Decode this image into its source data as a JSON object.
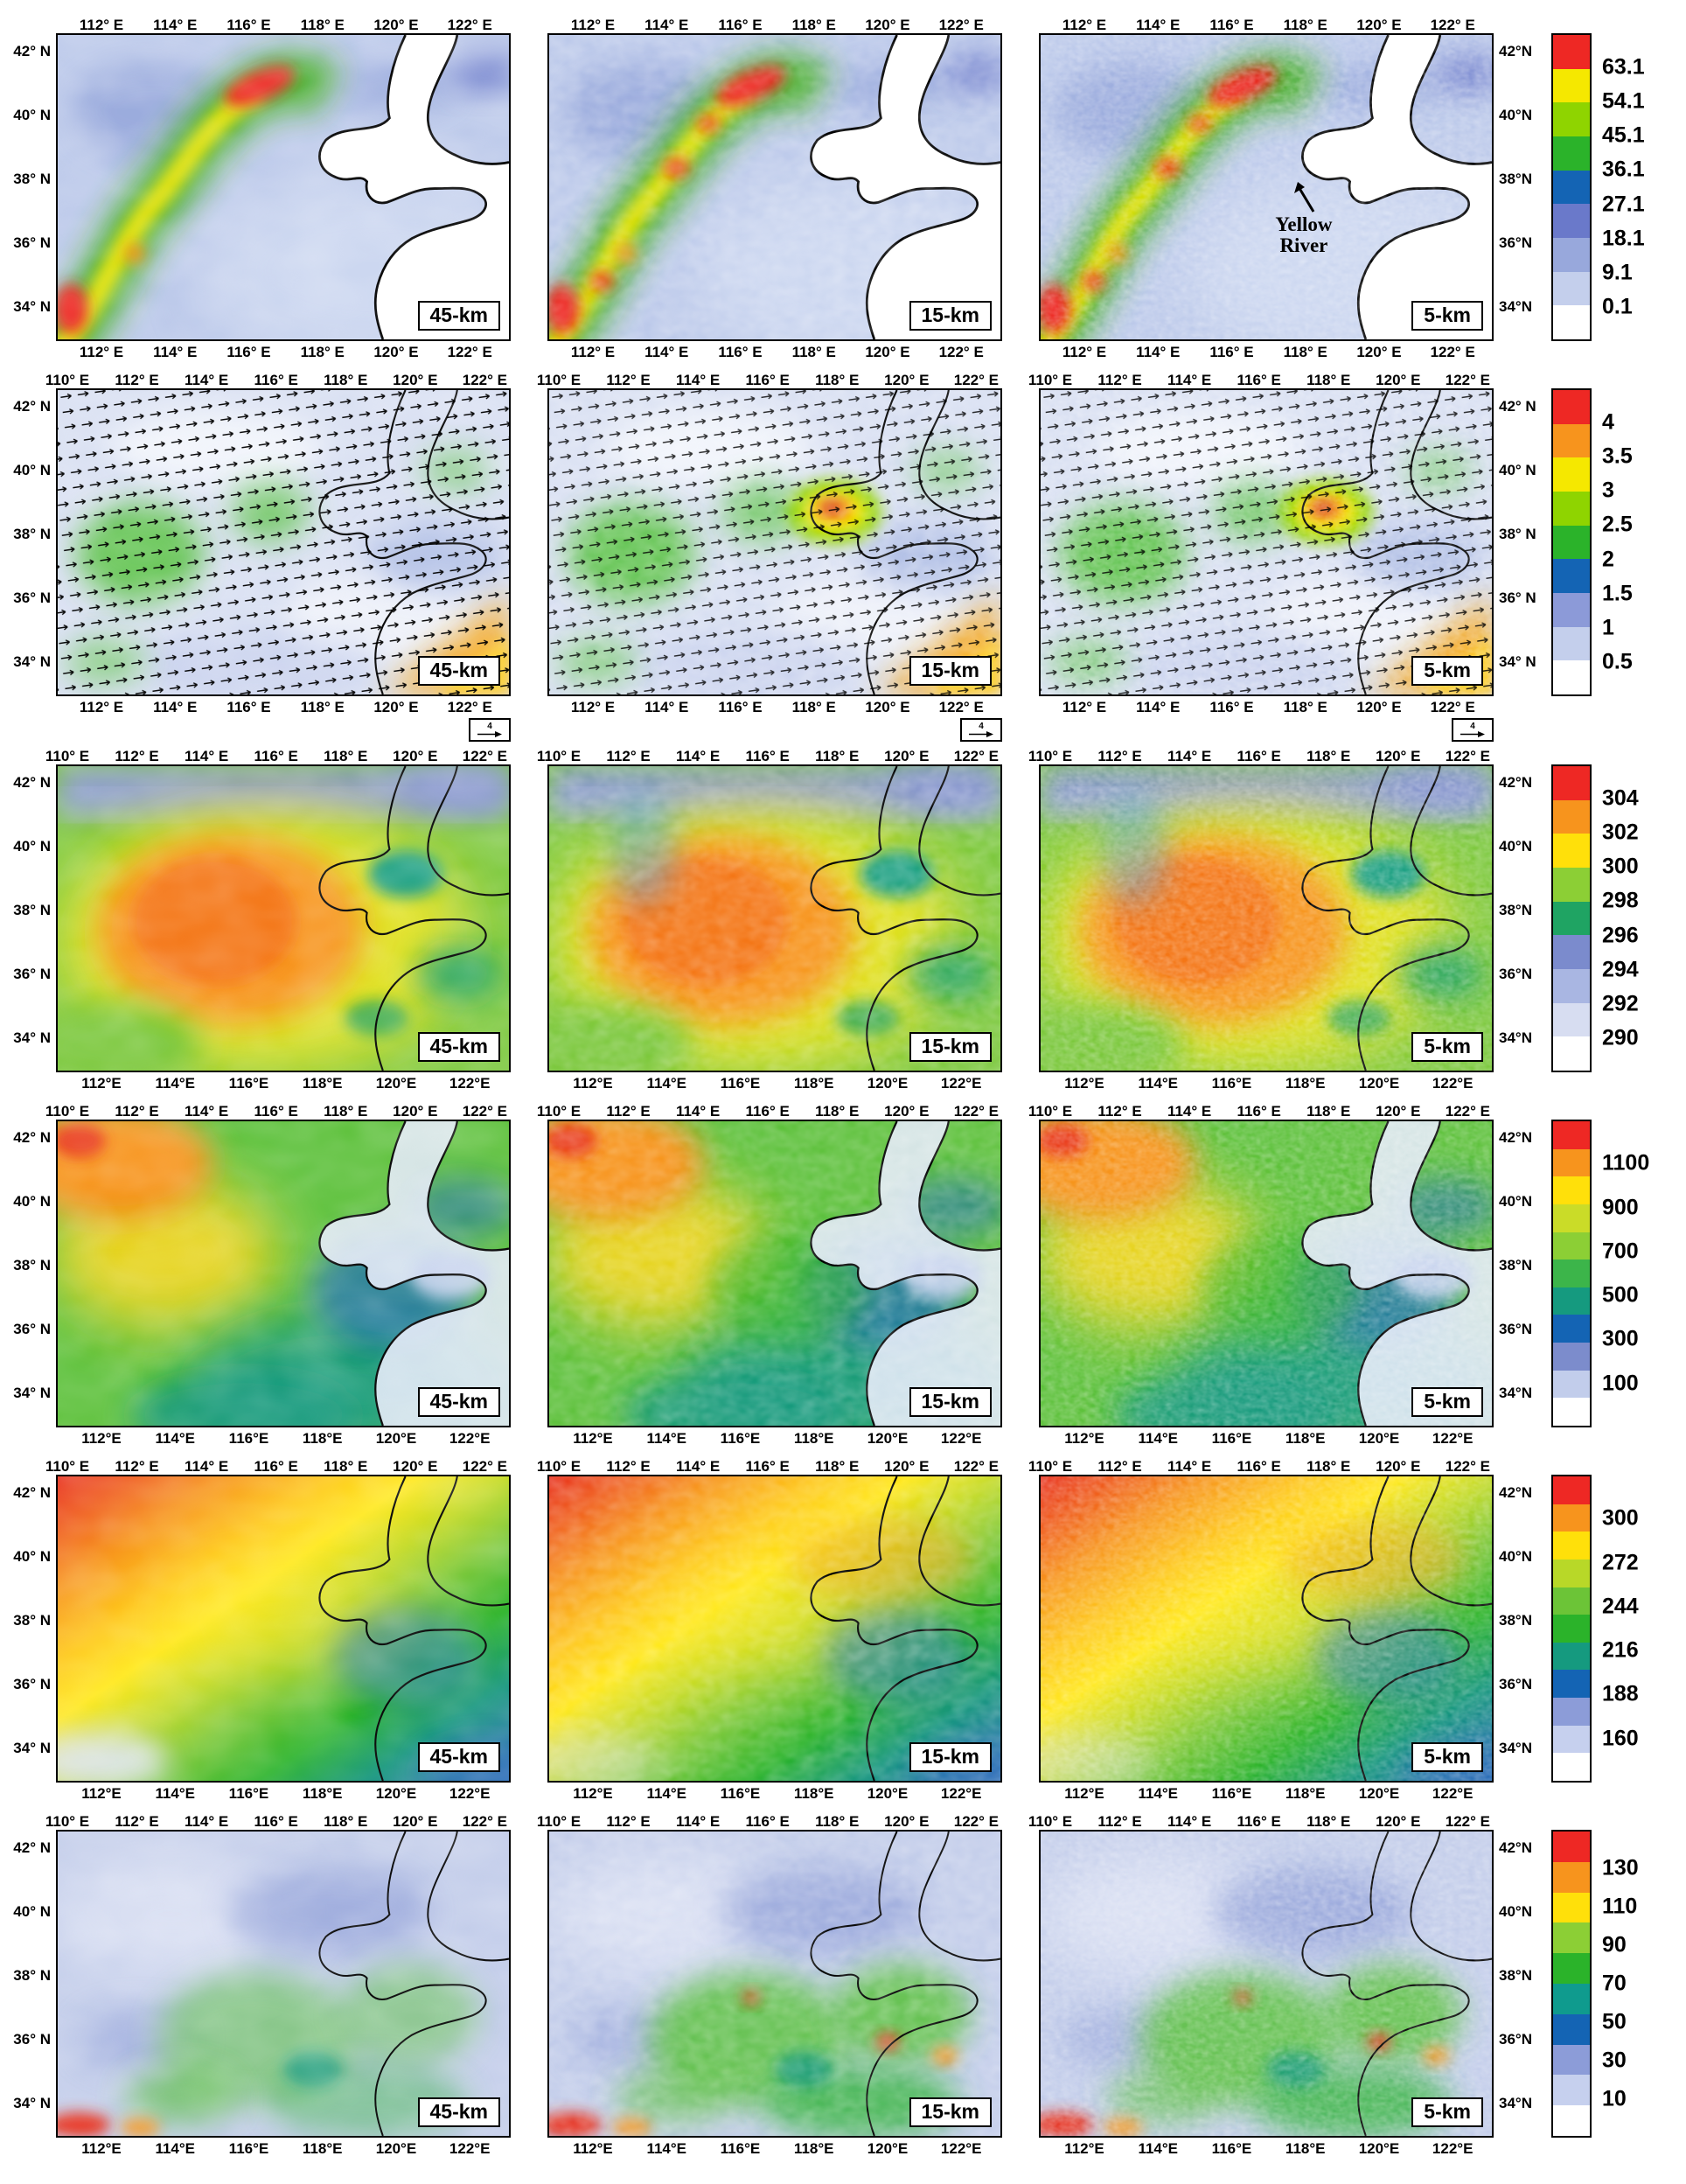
{
  "figure": {
    "rows": [
      {
        "name": "map-row-1",
        "top_lon_ticks": [
          "112° E",
          "114° E",
          "116° E",
          "118° E",
          "120° E",
          "122° E"
        ],
        "bottom_lon_ticks": [
          "112° E",
          "114° E",
          "116° E",
          "118° E",
          "120° E",
          "122° E"
        ],
        "lat_ticks": [
          "42° N",
          "40° N",
          "38° N",
          "36° N",
          "34° N"
        ],
        "right_lat_ticks": [
          "42°N",
          "40°N",
          "38°N",
          "36°N",
          "34°N"
        ],
        "panels": [
          {
            "label": "45-km"
          },
          {
            "label": "15-km"
          },
          {
            "label": "5-km",
            "annotation_lines": [
              "Yellow",
              "River"
            ]
          }
        ],
        "colorbar": {
          "ticks": [
            "63.1",
            "54.1",
            "45.1",
            "36.1",
            "27.1",
            "18.1",
            "9.1",
            "0.1"
          ],
          "colors": [
            "#ee2824",
            "#f5e800",
            "#8fd400",
            "#2bb32a",
            "#1464b4",
            "#6a79ca",
            "#98a8dc",
            "#c4cfec",
            "#ffffff"
          ]
        }
      },
      {
        "name": "map-row-2",
        "top_lon_ticks": [
          "110° E",
          "112° E",
          "114° E",
          "116° E",
          "118° E",
          "120° E",
          "122° E"
        ],
        "bottom_lon_ticks": [
          "112° E",
          "114° E",
          "116° E",
          "118° E",
          "120° E",
          "122° E"
        ],
        "lat_ticks": [
          "42° N",
          "40° N",
          "38° N",
          "36° N",
          "34° N"
        ],
        "right_lat_ticks": [
          "42° N",
          "40° N",
          "38° N",
          "36° N",
          "34° N"
        ],
        "vector_key": "4",
        "panels": [
          {
            "label": "45-km"
          },
          {
            "label": "15-km"
          },
          {
            "label": "5-km"
          }
        ],
        "colorbar": {
          "ticks": [
            "4",
            "3.5",
            "3",
            "2.5",
            "2",
            "1.5",
            "1",
            "0.5"
          ],
          "colors": [
            "#ee2824",
            "#f7941d",
            "#f5e800",
            "#8fd400",
            "#2bb32a",
            "#1464b4",
            "#8c9ad8",
            "#c4cfec",
            "#ffffff"
          ]
        }
      },
      {
        "name": "map-row-3",
        "top_lon_ticks": [
          "110° E",
          "112° E",
          "114° E",
          "116° E",
          "118° E",
          "120° E",
          "122° E"
        ],
        "bottom_lon_ticks": [
          "112°E",
          "114°E",
          "116°E",
          "118°E",
          "120°E",
          "122°E"
        ],
        "lat_ticks": [
          "42° N",
          "40° N",
          "38° N",
          "36° N",
          "34° N"
        ],
        "right_lat_ticks": [
          "42°N",
          "40°N",
          "38°N",
          "36°N",
          "34°N"
        ],
        "panels": [
          {
            "label": "45-km"
          },
          {
            "label": "15-km"
          },
          {
            "label": "5-km"
          }
        ],
        "colorbar": {
          "ticks": [
            "304",
            "302",
            "300",
            "298",
            "296",
            "294",
            "292",
            "290"
          ],
          "colors": [
            "#ee2824",
            "#f7941d",
            "#ffe00a",
            "#8ccf35",
            "#1fa463",
            "#7b8bcd",
            "#a9b6e2",
            "#d7ddf1",
            "#ffffff"
          ]
        }
      },
      {
        "name": "map-row-4",
        "top_lon_ticks": [
          "110° E",
          "112° E",
          "114° E",
          "116° E",
          "118° E",
          "120° E",
          "122° E"
        ],
        "bottom_lon_ticks": [
          "112°E",
          "114°E",
          "116°E",
          "118°E",
          "120°E",
          "122°E"
        ],
        "lat_ticks": [
          "42° N",
          "40° N",
          "38° N",
          "36° N",
          "34° N"
        ],
        "right_lat_ticks": [
          "42°N",
          "40°N",
          "38°N",
          "36°N",
          "34°N"
        ],
        "panels": [
          {
            "label": "45-km"
          },
          {
            "label": "15-km"
          },
          {
            "label": "5-km"
          }
        ],
        "colorbar": {
          "ticks": [
            "1100",
            "900",
            "700",
            "500",
            "300",
            "100"
          ],
          "colors": [
            "#ee2824",
            "#f7941d",
            "#ffe00a",
            "#cadc28",
            "#8ccf35",
            "#3cb54a",
            "#159a7f",
            "#1464b4",
            "#7c8ccc",
            "#c2cdeb",
            "#ffffff"
          ]
        }
      },
      {
        "name": "map-row-5",
        "top_lon_ticks": [
          "110° E",
          "112° E",
          "114° E",
          "116° E",
          "118° E",
          "120° E",
          "122° E"
        ],
        "bottom_lon_ticks": [
          "112°E",
          "114°E",
          "116°E",
          "118°E",
          "120°E",
          "122°E"
        ],
        "lat_ticks": [
          "42° N",
          "40° N",
          "38° N",
          "36° N",
          "34° N"
        ],
        "right_lat_ticks": [
          "42°N",
          "40°N",
          "38°N",
          "36°N",
          "34°N"
        ],
        "panels": [
          {
            "label": "45-km"
          },
          {
            "label": "15-km"
          },
          {
            "label": "5-km"
          }
        ],
        "colorbar": {
          "ticks": [
            "300",
            "272",
            "244",
            "216",
            "188",
            "160"
          ],
          "colors": [
            "#ee2824",
            "#f7941d",
            "#ffe00a",
            "#b8d828",
            "#6cc437",
            "#2bb32a",
            "#159a7f",
            "#1464b4",
            "#8c9cd8",
            "#c6d0ee",
            "#ffffff"
          ]
        }
      },
      {
        "name": "map-row-6",
        "top_lon_ticks": [
          "110° E",
          "112° E",
          "114° E",
          "116° E",
          "118° E",
          "120° E",
          "122° E"
        ],
        "bottom_lon_ticks": [
          "112°E",
          "114°E",
          "116°E",
          "118°E",
          "120°E",
          "122°E"
        ],
        "lat_ticks": [
          "42° N",
          "40° N",
          "38° N",
          "36° N",
          "34° N"
        ],
        "right_lat_ticks": [
          "42°N",
          "40°N",
          "38°N",
          "36°N",
          "34°N"
        ],
        "panels": [
          {
            "label": "45-km"
          },
          {
            "label": "15-km"
          },
          {
            "label": "5-km"
          }
        ],
        "colorbar": {
          "ticks": [
            "130",
            "110",
            "90",
            "70",
            "50",
            "30",
            "10"
          ],
          "colors": [
            "#ee2824",
            "#f7941d",
            "#ffe00a",
            "#8ccf35",
            "#2bb32a",
            "#0f9b8e",
            "#1464b4",
            "#8c9cd8",
            "#c6d0ee",
            "#ffffff"
          ]
        }
      }
    ]
  }
}
